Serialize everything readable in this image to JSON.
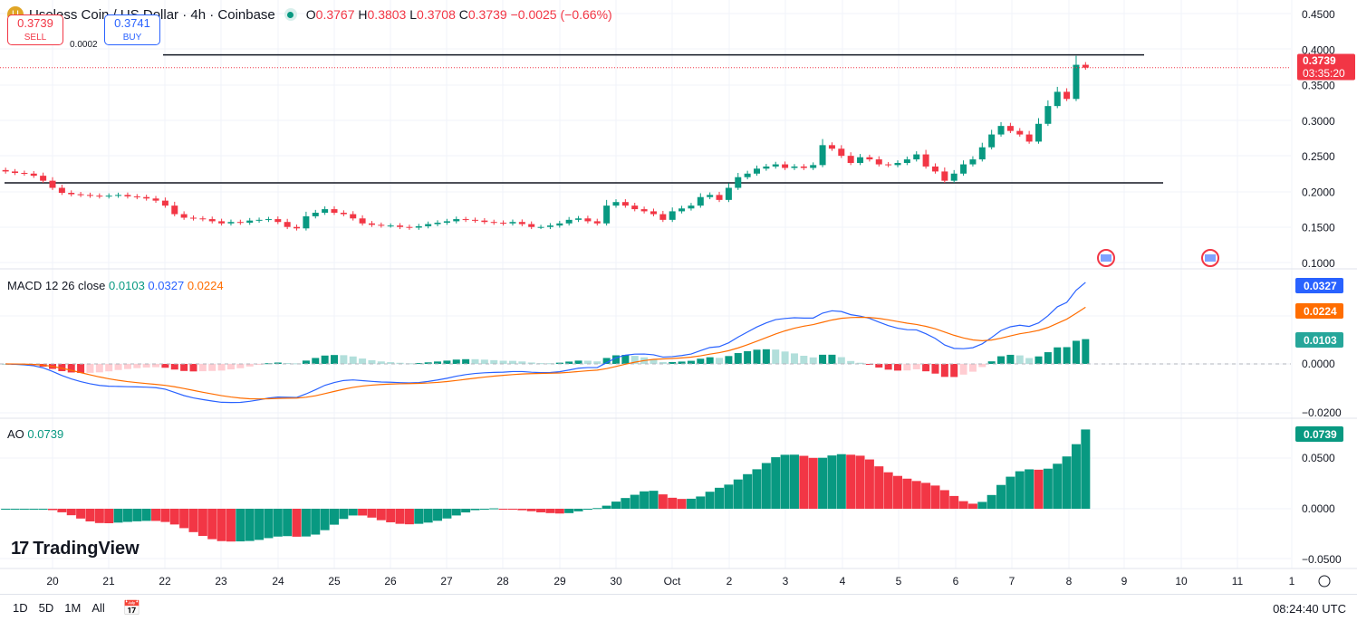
{
  "header": {
    "symbol": "Useless Coin / US Dollar · 4h · Coinbase",
    "open_label": "O",
    "open": "0.3767",
    "high_label": "H",
    "high": "0.3803",
    "low_label": "L",
    "low": "0.3708",
    "close_label": "C",
    "close": "0.3739",
    "change": "−0.0025 (−0.66%)"
  },
  "trade": {
    "sell_price": "0.3739",
    "sell_label": "SELL",
    "spread": "0.0002",
    "buy_price": "0.3741",
    "buy_label": "BUY"
  },
  "price_badge": {
    "price": "0.3739",
    "countdown": "03:35:20"
  },
  "macd": {
    "label": "MACD",
    "params": "12 26 close",
    "hist": "0.0103",
    "macd": "0.0327",
    "signal": "0.0224"
  },
  "ao": {
    "label": "AO",
    "value": "0.0739"
  },
  "bottom": {
    "ranges": [
      "1D",
      "5D",
      "1M",
      "All"
    ],
    "time": "08:24:40 UTC"
  },
  "logo": "TradingView",
  "colors": {
    "up": "#089981",
    "down": "#f23645",
    "macd": "#2962ff",
    "signal": "#ff6d00",
    "hist_up_light": "#b2dfdb",
    "hist_down_light": "#ffcdd2"
  },
  "chart_data": {
    "type": "candlestick",
    "price_ticks": [
      "0.4500",
      "0.4000",
      "0.3500",
      "0.3000",
      "0.2500",
      "0.2000",
      "0.1500",
      "0.1000"
    ],
    "price_range": [
      0.1,
      0.45
    ],
    "macd_ticks": [
      "0.0000",
      "−0.0200"
    ],
    "macd_range": [
      -0.02,
      0.0
    ],
    "ao_ticks": [
      "0.0500",
      "0.0000",
      "−0.0500"
    ],
    "ao_range": [
      -0.05,
      0.05
    ],
    "x_ticks": [
      "20",
      "21",
      "22",
      "23",
      "24",
      "25",
      "26",
      "27",
      "28",
      "29",
      "30",
      "Oct",
      "2",
      "3",
      "4",
      "5",
      "6",
      "7",
      "8",
      "9",
      "10",
      "11",
      "1"
    ],
    "horizontal_levels": [
      0.392,
      0.212
    ],
    "close": [
      0.228,
      0.226,
      0.225,
      0.222,
      0.215,
      0.205,
      0.198,
      0.196,
      0.195,
      0.194,
      0.193,
      0.194,
      0.195,
      0.193,
      0.192,
      0.19,
      0.187,
      0.18,
      0.168,
      0.163,
      0.162,
      0.161,
      0.158,
      0.155,
      0.157,
      0.156,
      0.159,
      0.16,
      0.161,
      0.157,
      0.15,
      0.148,
      0.165,
      0.17,
      0.175,
      0.17,
      0.168,
      0.162,
      0.155,
      0.153,
      0.152,
      0.152,
      0.15,
      0.149,
      0.151,
      0.154,
      0.156,
      0.158,
      0.161,
      0.16,
      0.159,
      0.157,
      0.156,
      0.155,
      0.157,
      0.154,
      0.15,
      0.15,
      0.152,
      0.155,
      0.16,
      0.162,
      0.158,
      0.155,
      0.18,
      0.185,
      0.18,
      0.175,
      0.172,
      0.168,
      0.16,
      0.172,
      0.176,
      0.18,
      0.192,
      0.195,
      0.188,
      0.205,
      0.22,
      0.225,
      0.232,
      0.235,
      0.238,
      0.233,
      0.235,
      0.233,
      0.237,
      0.265,
      0.26,
      0.25,
      0.24,
      0.248,
      0.245,
      0.238,
      0.237,
      0.24,
      0.245,
      0.252,
      0.235,
      0.228,
      0.215,
      0.225,
      0.238,
      0.245,
      0.262,
      0.28,
      0.292,
      0.285,
      0.28,
      0.27,
      0.295,
      0.32,
      0.34,
      0.33,
      0.378,
      0.374
    ]
  }
}
